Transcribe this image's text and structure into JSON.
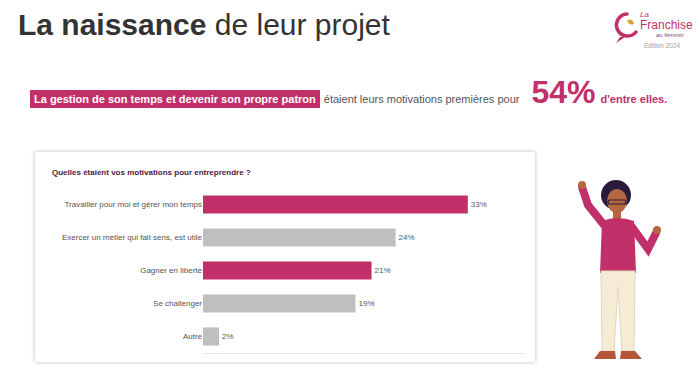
{
  "header": {
    "title_bold": "La naissance",
    "title_rest": "de leur projet",
    "logo": {
      "line1": "La",
      "line2": "Franchise",
      "line3": "au féminin",
      "edition": "Edition 2024"
    }
  },
  "headline": {
    "highlight": "La gestion de son temps et devenir son propre patron",
    "text": "étaient leurs motivations premières pour",
    "stat": "54%",
    "end": "d'entre elles."
  },
  "chart_data": {
    "type": "bar",
    "orientation": "horizontal",
    "title": "Quelles étaient vos motivations pour entreprendre ?",
    "categories": [
      "Travailler pour moi et gérer mon temps",
      "Exercer un métier qui fait sens, est utile",
      "Gagner en liberté",
      "Se challenger",
      "Autre"
    ],
    "values": [
      33,
      24,
      21,
      19,
      2
    ],
    "value_labels": [
      "33%",
      "24%",
      "21%",
      "19%",
      "2%"
    ],
    "colors": [
      "#c2306a",
      "#bfbfbf",
      "#c2306a",
      "#bfbfbf",
      "#bfbfbf"
    ],
    "xlim": [
      0,
      40
    ],
    "data_labels": true,
    "tick_labels": "y",
    "grid": false
  }
}
